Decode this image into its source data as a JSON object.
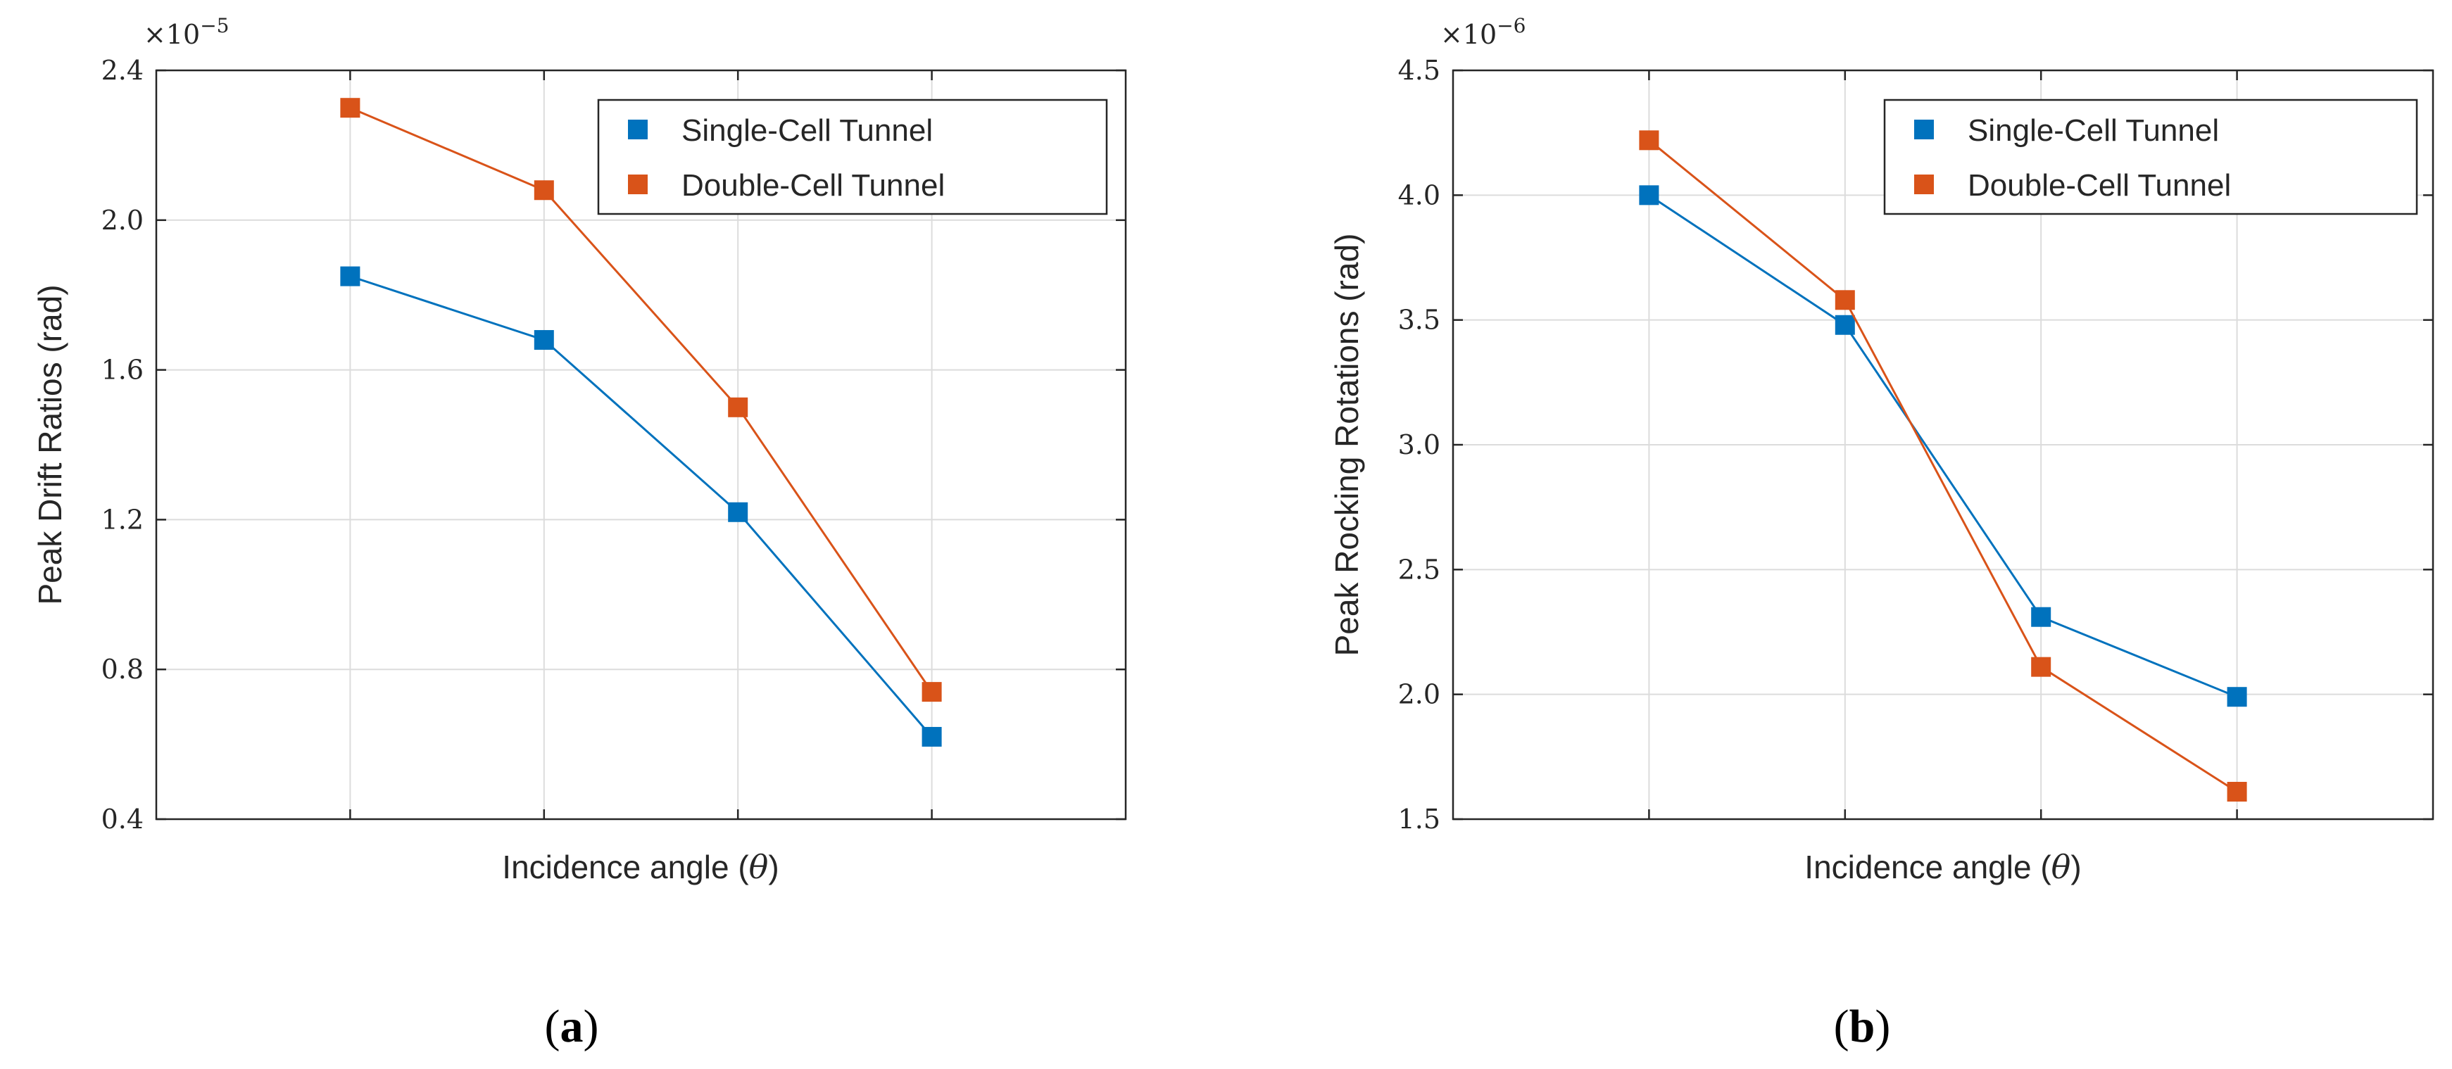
{
  "chart_data": [
    {
      "type": "line",
      "panel_label": "a",
      "title": "",
      "xlabel": "Incidence angle (θ)",
      "xlabel_text": "Incidence angle (",
      "xlabel_symbol": "θ",
      "xlabel_close": ")",
      "ylabel": "Peak Drift Ratios (rad)",
      "y_multiplier_base": "×10",
      "y_multiplier_exp": "−5",
      "ylim": [
        0.4,
        2.4
      ],
      "yticks": [
        0.4,
        0.8,
        1.2,
        1.6,
        2.0,
        2.4
      ],
      "ytick_labels": [
        "0.4",
        "0.8",
        "1.2",
        "1.6",
        "2.0",
        "2.4"
      ],
      "xlim": [
        0,
        5
      ],
      "x": [
        1,
        2,
        3,
        4
      ],
      "grid": true,
      "legend_position": "top-right",
      "series": [
        {
          "name": "Single-Cell Tunnel",
          "color": "#0072BD",
          "values": [
            1.85,
            1.68,
            1.22,
            0.62
          ]
        },
        {
          "name": "Double-Cell Tunnel",
          "color": "#D95319",
          "values": [
            2.3,
            2.08,
            1.5,
            0.74
          ]
        }
      ]
    },
    {
      "type": "line",
      "panel_label": "b",
      "title": "",
      "xlabel": "Incidence angle (θ)",
      "xlabel_text": "Incidence angle (",
      "xlabel_symbol": "θ",
      "xlabel_close": ")",
      "ylabel": "Peak Rocking Rotations (rad)",
      "y_multiplier_base": "×10",
      "y_multiplier_exp": "−6",
      "ylim": [
        1.5,
        4.5
      ],
      "yticks": [
        1.5,
        2.0,
        2.5,
        3.0,
        3.5,
        4.0,
        4.5
      ],
      "ytick_labels": [
        "1.5",
        "2.0",
        "2.5",
        "3.0",
        "3.5",
        "4.0",
        "4.5"
      ],
      "xlim": [
        0,
        5
      ],
      "x": [
        1,
        2,
        3,
        4
      ],
      "grid": true,
      "legend_position": "top-right",
      "series": [
        {
          "name": "Single-Cell Tunnel",
          "color": "#0072BD",
          "values": [
            4.0,
            3.48,
            2.31,
            1.99
          ]
        },
        {
          "name": "Double-Cell Tunnel",
          "color": "#D95319",
          "values": [
            4.22,
            3.58,
            2.11,
            1.61
          ]
        }
      ]
    }
  ]
}
